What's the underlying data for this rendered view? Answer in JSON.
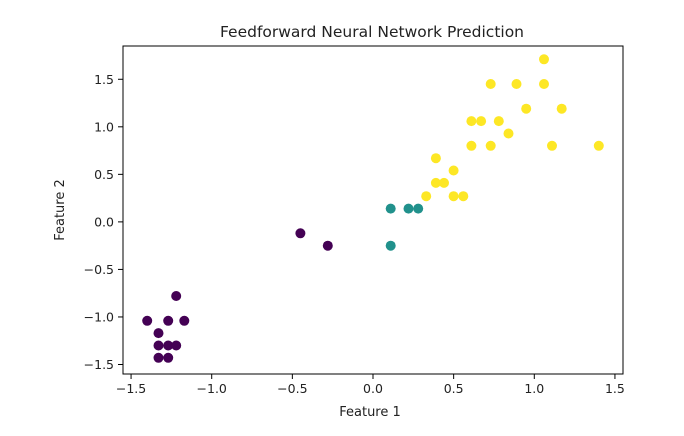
{
  "chart_data": {
    "type": "scatter",
    "title": "Feedforward Neural Network Prediction",
    "xlabel": "Feature 1",
    "ylabel": "Feature 2",
    "xlim": [
      -1.55,
      1.55
    ],
    "ylim": [
      -1.6,
      1.85
    ],
    "xticks": [
      {
        "value": -1.5,
        "label": "−1.5"
      },
      {
        "value": -1.0,
        "label": "−1.0"
      },
      {
        "value": -0.5,
        "label": "−0.5"
      },
      {
        "value": 0.0,
        "label": "0.0"
      },
      {
        "value": 0.5,
        "label": "0.5"
      },
      {
        "value": 1.0,
        "label": "1.0"
      },
      {
        "value": 1.5,
        "label": "1.5"
      }
    ],
    "yticks": [
      {
        "value": -1.5,
        "label": "−1.5"
      },
      {
        "value": -1.0,
        "label": "−1.0"
      },
      {
        "value": -0.5,
        "label": "−0.5"
      },
      {
        "value": 0.0,
        "label": "0.0"
      },
      {
        "value": 0.5,
        "label": "0.5"
      },
      {
        "value": 1.0,
        "label": "1.0"
      },
      {
        "value": 1.5,
        "label": "1.5"
      }
    ],
    "grid": false,
    "legend": "none",
    "series": [
      {
        "color": "#440154",
        "points": [
          [
            -1.4,
            -1.04
          ],
          [
            -1.22,
            -0.78
          ],
          [
            -1.17,
            -1.04
          ],
          [
            -1.27,
            -1.04
          ],
          [
            -1.33,
            -1.17
          ],
          [
            -1.33,
            -1.3
          ],
          [
            -1.27,
            -1.3
          ],
          [
            -1.22,
            -1.3
          ],
          [
            -1.33,
            -1.43
          ],
          [
            -1.27,
            -1.43
          ],
          [
            -0.45,
            -0.12
          ],
          [
            -0.28,
            -0.25
          ]
        ]
      },
      {
        "color": "#21918c",
        "points": [
          [
            0.11,
            0.14
          ],
          [
            0.22,
            0.14
          ],
          [
            0.28,
            0.14
          ],
          [
            0.11,
            -0.25
          ]
        ]
      },
      {
        "color": "#fde725",
        "points": [
          [
            1.06,
            1.71
          ],
          [
            0.73,
            1.45
          ],
          [
            0.89,
            1.45
          ],
          [
            1.06,
            1.45
          ],
          [
            0.95,
            1.19
          ],
          [
            1.17,
            1.19
          ],
          [
            0.61,
            1.06
          ],
          [
            0.67,
            1.06
          ],
          [
            0.78,
            1.06
          ],
          [
            0.84,
            0.93
          ],
          [
            0.61,
            0.8
          ],
          [
            0.73,
            0.8
          ],
          [
            1.11,
            0.8
          ],
          [
            1.4,
            0.8
          ],
          [
            0.39,
            0.67
          ],
          [
            0.39,
            0.41
          ],
          [
            0.44,
            0.41
          ],
          [
            0.5,
            0.54
          ],
          [
            0.33,
            0.27
          ],
          [
            0.5,
            0.27
          ],
          [
            0.56,
            0.27
          ]
        ]
      }
    ]
  }
}
